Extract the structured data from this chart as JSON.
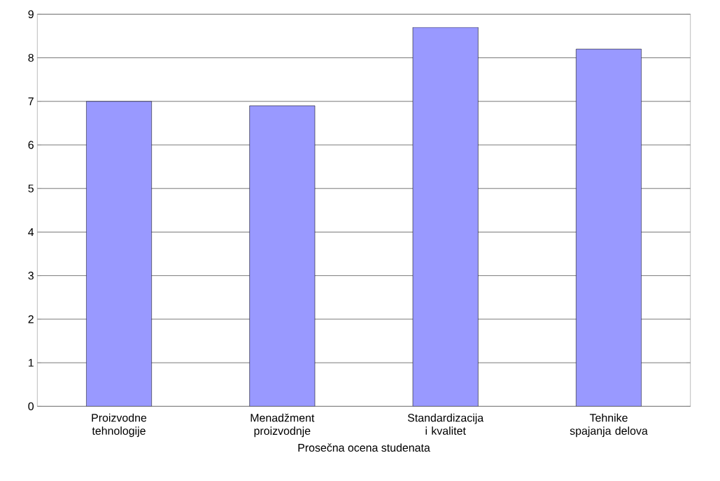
{
  "chart_data": {
    "type": "bar",
    "xlabel": "Prosečna ocena studenata",
    "categories": [
      "Proizvodne tehnologije",
      "Menadžment proizvodnje",
      "Standardizacija i kvalitet",
      "Tehnike spajanja delova"
    ],
    "values": [
      7.0,
      6.9,
      8.7,
      8.2
    ],
    "color": "#9999ff",
    "ylim": [
      0,
      9
    ],
    "yticks": [
      0,
      1,
      2,
      3,
      4,
      5,
      6,
      7,
      8,
      9
    ],
    "grid": "y"
  }
}
